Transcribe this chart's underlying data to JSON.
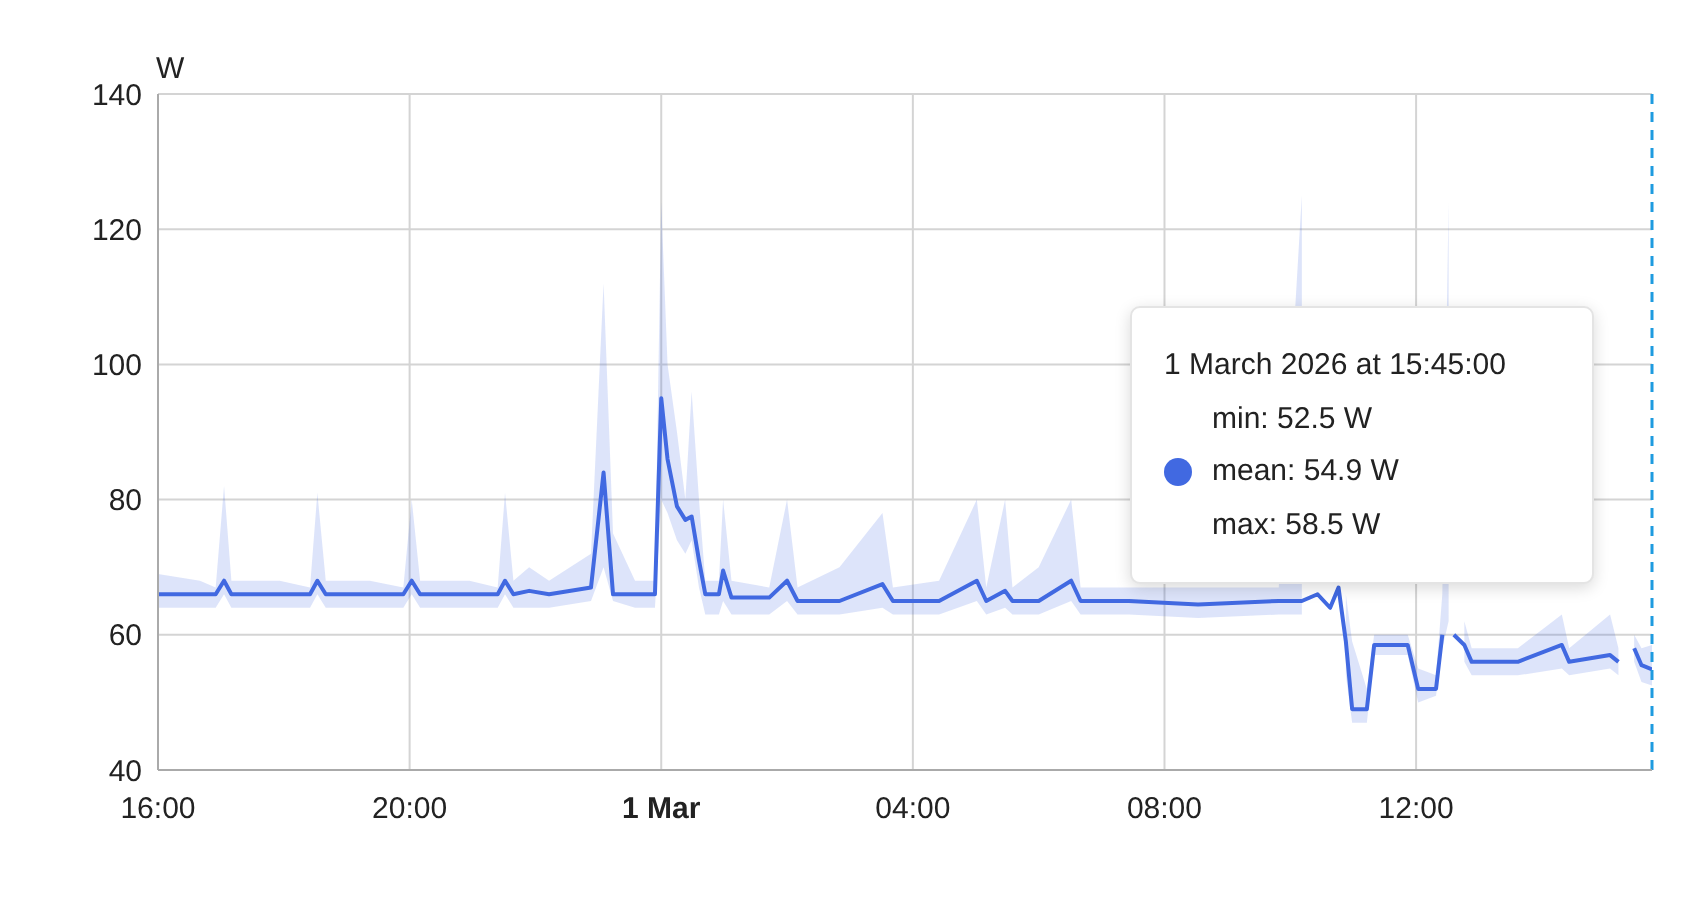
{
  "chart_data": {
    "type": "line",
    "ylabel": "W",
    "xlim": [
      "2026-02-28T16:00",
      "2026-03-01T15:45"
    ],
    "ylim": [
      40,
      140
    ],
    "xticks": [
      {
        "value": "2026-02-28T16:00",
        "label": "16:00"
      },
      {
        "value": "2026-02-28T20:00",
        "label": "20:00"
      },
      {
        "value": "2026-03-01T00:00",
        "label": "1 Mar"
      },
      {
        "value": "2026-03-01T04:00",
        "label": "04:00"
      },
      {
        "value": "2026-03-01T08:00",
        "label": "08:00"
      },
      {
        "value": "2026-03-01T12:00",
        "label": "12:00"
      }
    ],
    "yticks": [
      40,
      60,
      80,
      100,
      120,
      140
    ],
    "grid": true,
    "legend": false,
    "marker": "none",
    "line_style": "solid",
    "x": [
      "2026-02-28T16:00",
      "2026-02-28T16:40",
      "2026-02-28T16:55",
      "2026-02-28T17:03",
      "2026-02-28T17:10",
      "2026-02-28T17:56",
      "2026-02-28T18:25",
      "2026-02-28T18:32",
      "2026-02-28T18:40",
      "2026-02-28T19:22",
      "2026-02-28T19:54",
      "2026-02-28T20:02",
      "2026-02-28T20:10",
      "2026-02-28T20:57",
      "2026-02-28T21:24",
      "2026-02-28T21:31",
      "2026-02-28T21:39",
      "2026-02-28T21:54",
      "2026-02-28T22:13",
      "2026-02-28T22:53",
      "2026-02-28T23:05",
      "2026-02-28T23:14",
      "2026-02-28T23:35",
      "2026-02-28T23:54",
      "2026-03-01T00:00",
      "2026-03-01T00:06",
      "2026-03-01T00:15",
      "2026-03-01T00:23",
      "2026-03-01T00:29",
      "2026-03-01T00:36",
      "2026-03-01T00:42",
      "2026-03-01T00:55",
      "2026-03-01T00:59",
      "2026-03-01T01:07",
      "2026-03-01T01:43",
      "2026-03-01T02:00",
      "2026-03-01T02:10",
      "2026-03-01T02:50",
      "2026-03-01T03:31",
      "2026-03-01T03:41",
      "2026-03-01T04:25",
      "2026-03-01T05:01",
      "2026-03-01T05:10",
      "2026-03-01T05:28",
      "2026-03-01T05:35",
      "2026-03-01T06:00",
      "2026-03-01T06:31",
      "2026-03-01T06:40",
      "2026-03-01T07:26",
      "2026-03-01T08:32",
      "2026-03-01T09:49",
      "2026-03-01T10:11",
      "2026-03-01T10:26",
      "2026-03-01T10:38",
      "2026-03-01T10:46",
      "2026-03-01T10:53",
      "2026-03-01T10:59",
      "2026-03-01T11:13",
      "2026-03-01T11:20",
      "2026-03-01T11:52",
      "2026-03-01T12:02",
      "2026-03-01T12:19",
      "2026-03-01T12:25",
      "2026-03-01T12:31",
      "2026-03-01T12:36",
      "2026-03-01T12:46",
      "2026-03-01T12:53",
      "2026-03-01T13:37",
      "2026-03-01T14:19",
      "2026-03-01T14:26",
      "2026-03-01T15:05",
      "2026-03-01T15:13",
      "2026-03-01T15:18",
      "2026-03-01T15:28",
      "2026-03-01T15:35",
      "2026-03-01T15:45"
    ],
    "series": [
      {
        "color": "#4169e1",
        "values": [
          66,
          66,
          66,
          68,
          66,
          66,
          66,
          68,
          66,
          66,
          66,
          68,
          66,
          66,
          66,
          68,
          66,
          66.5,
          66,
          67,
          84,
          66,
          66,
          66,
          95,
          86,
          79,
          77,
          77.5,
          71,
          66,
          66,
          69.5,
          65.5,
          65.5,
          68,
          65,
          65,
          67.5,
          65,
          65,
          68,
          65,
          66.5,
          65,
          65,
          68,
          65,
          65,
          64.5,
          65,
          65,
          66,
          64,
          67,
          59,
          49,
          49,
          58.5,
          58.5,
          52,
          52,
          60,
          null,
          60,
          58.5,
          56,
          56,
          58.5,
          56,
          57,
          56,
          null,
          58,
          55.5,
          54.9
        ],
        "lower": [
          64,
          64,
          64,
          66,
          64,
          64,
          64,
          66,
          64,
          64,
          64,
          66,
          64,
          64,
          64,
          66,
          64,
          64,
          64,
          65,
          70,
          65,
          64,
          64,
          80,
          78,
          74,
          72,
          74,
          67,
          63,
          63,
          65,
          63,
          63,
          65,
          63,
          63,
          64,
          63,
          63,
          65,
          63,
          64,
          63,
          63,
          65,
          63,
          63,
          62.5,
          63,
          63,
          null,
          null,
          null,
          54,
          47,
          47,
          57,
          57,
          50,
          51,
          58,
          62,
          null,
          56,
          54,
          54,
          55,
          54,
          55,
          54,
          null,
          56,
          53,
          52.5
        ],
        "upper": [
          69,
          68,
          67,
          82,
          68,
          68,
          67,
          81,
          68,
          68,
          67,
          80,
          68,
          68,
          67,
          81,
          68,
          70,
          68,
          72,
          112,
          75,
          68,
          68,
          124,
          100,
          90,
          80,
          96,
          80,
          68,
          68,
          80,
          68,
          67,
          80,
          67,
          70,
          78,
          67,
          68,
          80,
          67,
          80,
          67,
          70,
          80,
          67,
          67,
          67,
          67,
          125,
          null,
          null,
          null,
          66,
          59,
          52,
          60,
          60,
          55,
          54,
          66,
          124,
          null,
          62,
          58,
          58,
          63,
          58,
          63,
          58,
          null,
          60,
          58,
          58.5
        ]
      }
    ],
    "ref_lines": [
      {
        "axis": "x",
        "value": "2026-03-01T15:45",
        "color": "#1e9be0",
        "line_style": "dashed"
      }
    ],
    "annotations": [
      "1 March 2026 at 15:45:00",
      "min: 52.5 W",
      "mean: 54.9 W",
      "max: 58.5 W"
    ]
  }
}
